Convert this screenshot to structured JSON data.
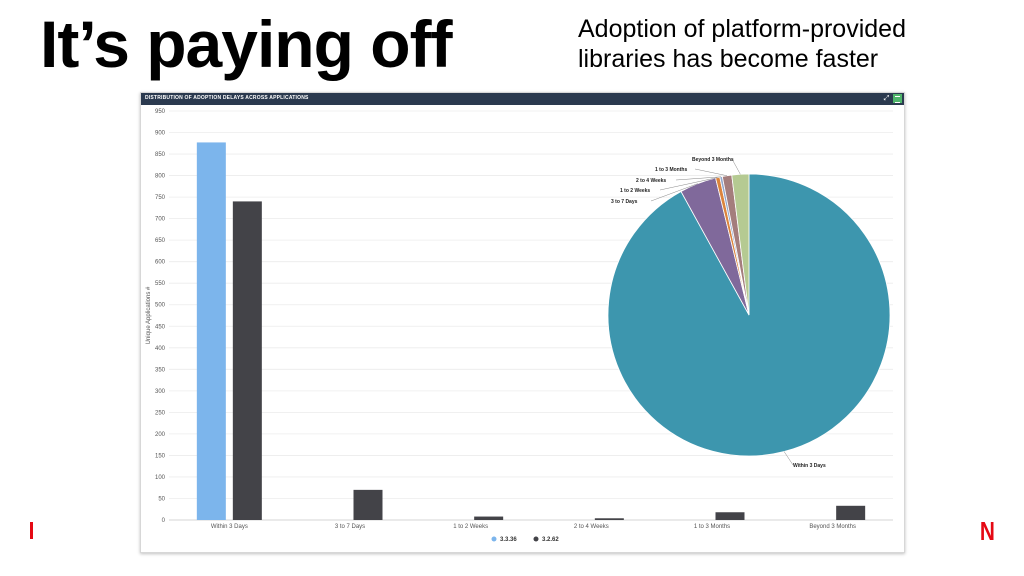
{
  "slide": {
    "title": "It’s paying off",
    "subtitle": "Adoption of platform-provided libraries has become faster",
    "logo_letter": "N",
    "accent_color": "#e50914"
  },
  "panel": {
    "title": "DISTRIBUTION OF ADOPTION DELAYS ACROSS APPLICATIONS",
    "header_color": "#2b3a4f",
    "menu_color": "#4fb56b"
  },
  "chart_data": [
    {
      "type": "bar",
      "ylabel": "Unique Applications #",
      "ylim": [
        0,
        950
      ],
      "yticks": [
        0,
        50,
        100,
        150,
        200,
        250,
        300,
        350,
        400,
        450,
        500,
        550,
        600,
        650,
        700,
        750,
        800,
        850,
        900,
        950
      ],
      "grid": true,
      "categories": [
        "Within 3 Days",
        "3 to 7 Days",
        "1 to 2 Weeks",
        "2 to 4 Weeks",
        "1 to 3 Months",
        "Beyond 3 Months"
      ],
      "series": [
        {
          "name": "3.3.36",
          "color": "#7cb5ec",
          "values": [
            877,
            null,
            null,
            null,
            null,
            null
          ]
        },
        {
          "name": "3.2.62",
          "color": "#434348",
          "values": [
            740,
            70,
            8,
            4,
            18,
            33
          ]
        }
      ],
      "legend": "bottom-center"
    },
    {
      "type": "pie",
      "slices": [
        {
          "label": "Within 3 Days",
          "value": 94.2,
          "color": "#3d96ae"
        },
        {
          "label": "3 to 7 Days",
          "value": 4.3,
          "color": "#80699b"
        },
        {
          "label": "1 to 2 Weeks",
          "value": 0.5,
          "color": "#db843d"
        },
        {
          "label": "2 to 4 Weeks",
          "value": 0.3,
          "color": "#92a8cd"
        },
        {
          "label": "1 to 3 Months",
          "value": 1.1,
          "color": "#a47d7c"
        },
        {
          "label": "Beyond 3 Months",
          "value": 2.0,
          "color": "#b5ca92"
        }
      ]
    }
  ]
}
